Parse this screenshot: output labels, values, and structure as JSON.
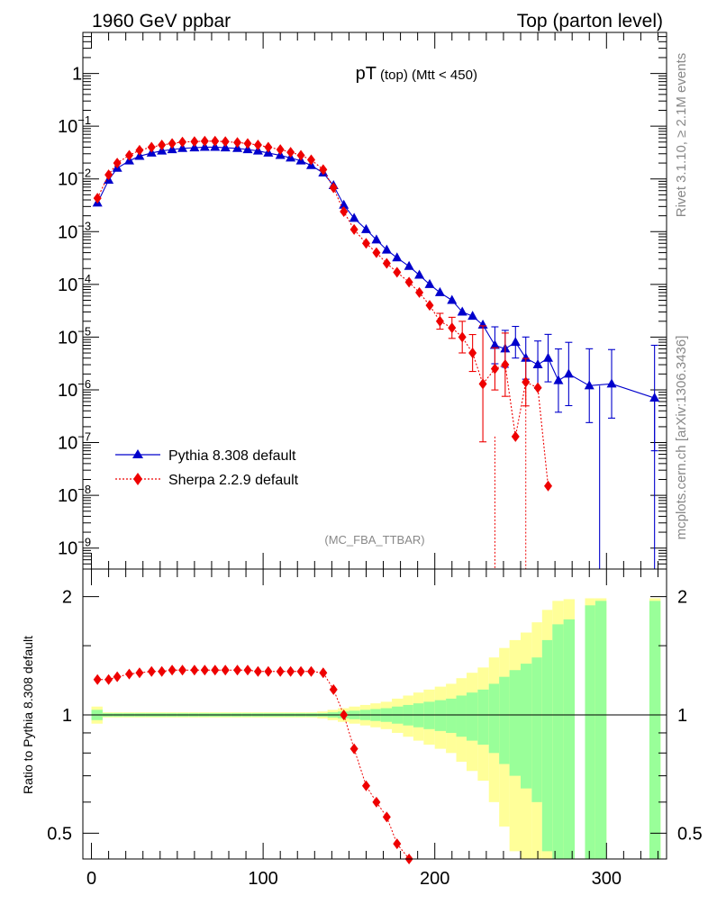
{
  "header": {
    "left": "1960 GeV ppbar",
    "right": "Top (parton level)"
  },
  "side": {
    "rivet": "Rivet 3.1.10, ≥ 2.1M events",
    "mcplots": "mcplots.cern.ch [arXiv:1306.3436]"
  },
  "chart_data": [
    {
      "type": "line",
      "title_main": "pT",
      "title_sub": "(top)  (Mtt < 450)",
      "analysis": "(MC_FBA_TTBAR)",
      "yscale": "log",
      "xlim": [
        -5,
        335
      ],
      "ylim": [
        4e-10,
        6
      ],
      "yticks": [
        {
          "v": 1e-09,
          "label": "10",
          "exp": "−9"
        },
        {
          "v": 1e-08,
          "label": "10",
          "exp": "−8"
        },
        {
          "v": 1e-07,
          "label": "10",
          "exp": "−7"
        },
        {
          "v": 1e-06,
          "label": "10",
          "exp": "−6"
        },
        {
          "v": 1e-05,
          "label": "10",
          "exp": "−5"
        },
        {
          "v": 0.0001,
          "label": "10",
          "exp": "−4"
        },
        {
          "v": 0.001,
          "label": "10",
          "exp": "−3"
        },
        {
          "v": 0.01,
          "label": "10",
          "exp": "−2"
        },
        {
          "v": 0.1,
          "label": "10",
          "exp": "−1"
        },
        {
          "v": 1,
          "label": "1",
          "exp": ""
        }
      ],
      "series": [
        {
          "name": "Pythia 8.308 default",
          "color": "#0000cc",
          "marker": "triangle",
          "x": [
            3.5,
            10,
            15,
            22,
            28,
            35,
            41,
            47,
            53,
            60,
            66,
            72,
            78,
            85,
            91,
            97,
            103,
            110,
            116,
            122,
            128,
            135,
            141,
            147,
            153,
            160,
            166,
            172,
            178,
            185,
            191,
            197,
            203,
            210,
            216,
            222,
            228,
            235,
            241,
            247,
            253,
            260,
            266,
            272,
            278,
            290,
            303,
            328
          ],
          "y": [
            0.0035,
            0.0095,
            0.016,
            0.022,
            0.027,
            0.031,
            0.034,
            0.036,
            0.038,
            0.039,
            0.04,
            0.04,
            0.039,
            0.038,
            0.036,
            0.034,
            0.031,
            0.028,
            0.025,
            0.022,
            0.018,
            0.013,
            0.0075,
            0.0032,
            0.0018,
            0.0011,
            0.0007,
            0.00045,
            0.00032,
            0.00022,
            0.00015,
            0.0001,
            7e-05,
            5e-05,
            3e-05,
            2.5e-05,
            1.7e-05,
            7e-06,
            6e-06,
            8e-06,
            4e-06,
            3e-06,
            4e-06,
            1.5e-06,
            2e-06,
            1.2e-06,
            1.3e-06,
            7e-07
          ],
          "err": [
            0,
            0,
            0,
            0,
            0,
            0,
            0,
            0,
            0,
            0,
            0,
            0,
            0,
            0,
            0,
            0,
            0,
            0,
            0,
            0,
            0,
            0,
            0,
            0,
            0,
            0,
            0,
            0,
            0,
            0,
            0,
            0,
            0,
            0,
            0,
            0,
            0,
            0.35,
            0.35,
            0.3,
            0.4,
            0.45,
            0.45,
            0.6,
            0.6,
            0.7,
            0.65,
            1.0
          ]
        },
        {
          "name": "Sherpa 2.2.9 default",
          "color": "#ee0000",
          "marker": "diamond",
          "x": [
            3.5,
            10,
            15,
            22,
            28,
            35,
            41,
            47,
            53,
            60,
            66,
            72,
            78,
            85,
            91,
            97,
            103,
            110,
            116,
            122,
            128,
            135,
            141,
            147,
            153,
            160,
            166,
            172,
            178,
            185,
            191,
            197,
            203,
            210,
            216,
            222,
            228,
            235,
            241,
            247,
            253,
            260,
            266
          ],
          "y": [
            0.0043,
            0.012,
            0.02,
            0.028,
            0.035,
            0.04,
            0.044,
            0.047,
            0.05,
            0.051,
            0.052,
            0.052,
            0.051,
            0.049,
            0.047,
            0.044,
            0.04,
            0.036,
            0.032,
            0.028,
            0.023,
            0.015,
            0.0068,
            0.0024,
            0.0011,
            0.0006,
            0.0004,
            0.00025,
            0.00017,
            0.00011,
            7e-05,
            4e-05,
            2e-05,
            1.5e-05,
            1e-05,
            5e-06,
            1.3e-06,
            2.5e-06,
            3e-06,
            1.3e-07,
            1.4e-06,
            1.1e-06,
            1.5e-08
          ],
          "err": [
            0,
            0,
            0,
            0,
            0,
            0,
            0,
            0,
            0,
            0,
            0,
            0,
            0,
            0,
            0,
            0,
            0,
            0,
            0,
            0,
            0,
            0,
            0,
            0,
            0,
            0,
            0,
            0,
            0,
            0,
            0,
            0,
            0.15,
            0.2,
            0.3,
            0.35,
            1.1,
            0.4,
            0.6,
            0,
            0.45,
            0,
            0
          ]
        }
      ]
    },
    {
      "type": "area",
      "ylabel": "Ratio to Pythia 8.308 default",
      "xlim": [
        -5,
        335
      ],
      "ylim": [
        0.43,
        2.35
      ],
      "yscale": "log",
      "yticks": [
        0.5,
        1,
        2
      ],
      "ytick_labels": [
        "0.5",
        "1",
        "2"
      ],
      "xticks": [
        0,
        100,
        200,
        300
      ],
      "xtick_labels": [
        "0",
        "100",
        "200",
        "300"
      ],
      "bands": {
        "edges": [
          0,
          6.5,
          12.5,
          18.5,
          25,
          31.5,
          37.5,
          43.5,
          50,
          56.5,
          62.5,
          68.5,
          75,
          81.5,
          87.5,
          93.5,
          100,
          106.5,
          112.5,
          118.5,
          125,
          131.5,
          137.5,
          143.5,
          150,
          156.5,
          162.5,
          168.5,
          175,
          181.5,
          187.5,
          193.5,
          200,
          206.5,
          212.5,
          218.5,
          225,
          231.5,
          237.5,
          243.5,
          250,
          256.5,
          262.5,
          268.5,
          275,
          281.5,
          287.5,
          293.5,
          300,
          306.5,
          312.5,
          318.5,
          325,
          331.5
        ],
        "green": [
          0.03,
          0.01,
          0.01,
          0.01,
          0.01,
          0.01,
          0.01,
          0.01,
          0.01,
          0.01,
          0.01,
          0.01,
          0.01,
          0.01,
          0.01,
          0.01,
          0.01,
          0.01,
          0.01,
          0.01,
          0.01,
          0.01,
          0.015,
          0.02,
          0.025,
          0.03,
          0.035,
          0.04,
          0.05,
          0.06,
          0.07,
          0.08,
          0.09,
          0.1,
          0.12,
          0.14,
          0.16,
          0.2,
          0.25,
          0.3,
          0.35,
          0.4,
          0.55,
          0.7,
          0.75,
          null,
          0.9,
          0.95,
          null,
          null,
          null,
          null,
          0.95,
          null
        ],
        "yellow": [
          0.05,
          0.015,
          0.015,
          0.015,
          0.015,
          0.015,
          0.015,
          0.015,
          0.015,
          0.015,
          0.015,
          0.015,
          0.015,
          0.015,
          0.015,
          0.015,
          0.015,
          0.015,
          0.015,
          0.015,
          0.015,
          0.02,
          0.03,
          0.04,
          0.05,
          0.06,
          0.07,
          0.08,
          0.1,
          0.12,
          0.14,
          0.16,
          0.18,
          0.2,
          0.24,
          0.28,
          0.32,
          0.4,
          0.48,
          0.55,
          0.62,
          0.72,
          0.85,
          0.95,
          0.97,
          null,
          0.98,
          0.98,
          null,
          null,
          null,
          null,
          0.98,
          null
        ]
      },
      "series": [
        {
          "name": "Sherpa 2.2.9 default",
          "color": "#ee0000",
          "x": [
            3.5,
            10,
            15,
            22,
            28,
            35,
            41,
            47,
            53,
            60,
            66,
            72,
            78,
            85,
            91,
            97,
            103,
            110,
            116,
            122,
            128,
            135,
            141,
            147,
            153,
            160,
            166,
            172,
            178,
            185
          ],
          "y": [
            1.23,
            1.23,
            1.25,
            1.27,
            1.28,
            1.29,
            1.29,
            1.3,
            1.3,
            1.3,
            1.3,
            1.3,
            1.3,
            1.3,
            1.3,
            1.29,
            1.29,
            1.29,
            1.29,
            1.29,
            1.29,
            1.28,
            1.16,
            1.0,
            0.82,
            0.66,
            0.6,
            0.55,
            0.47,
            0.43
          ]
        }
      ],
      "reference": 1
    }
  ]
}
